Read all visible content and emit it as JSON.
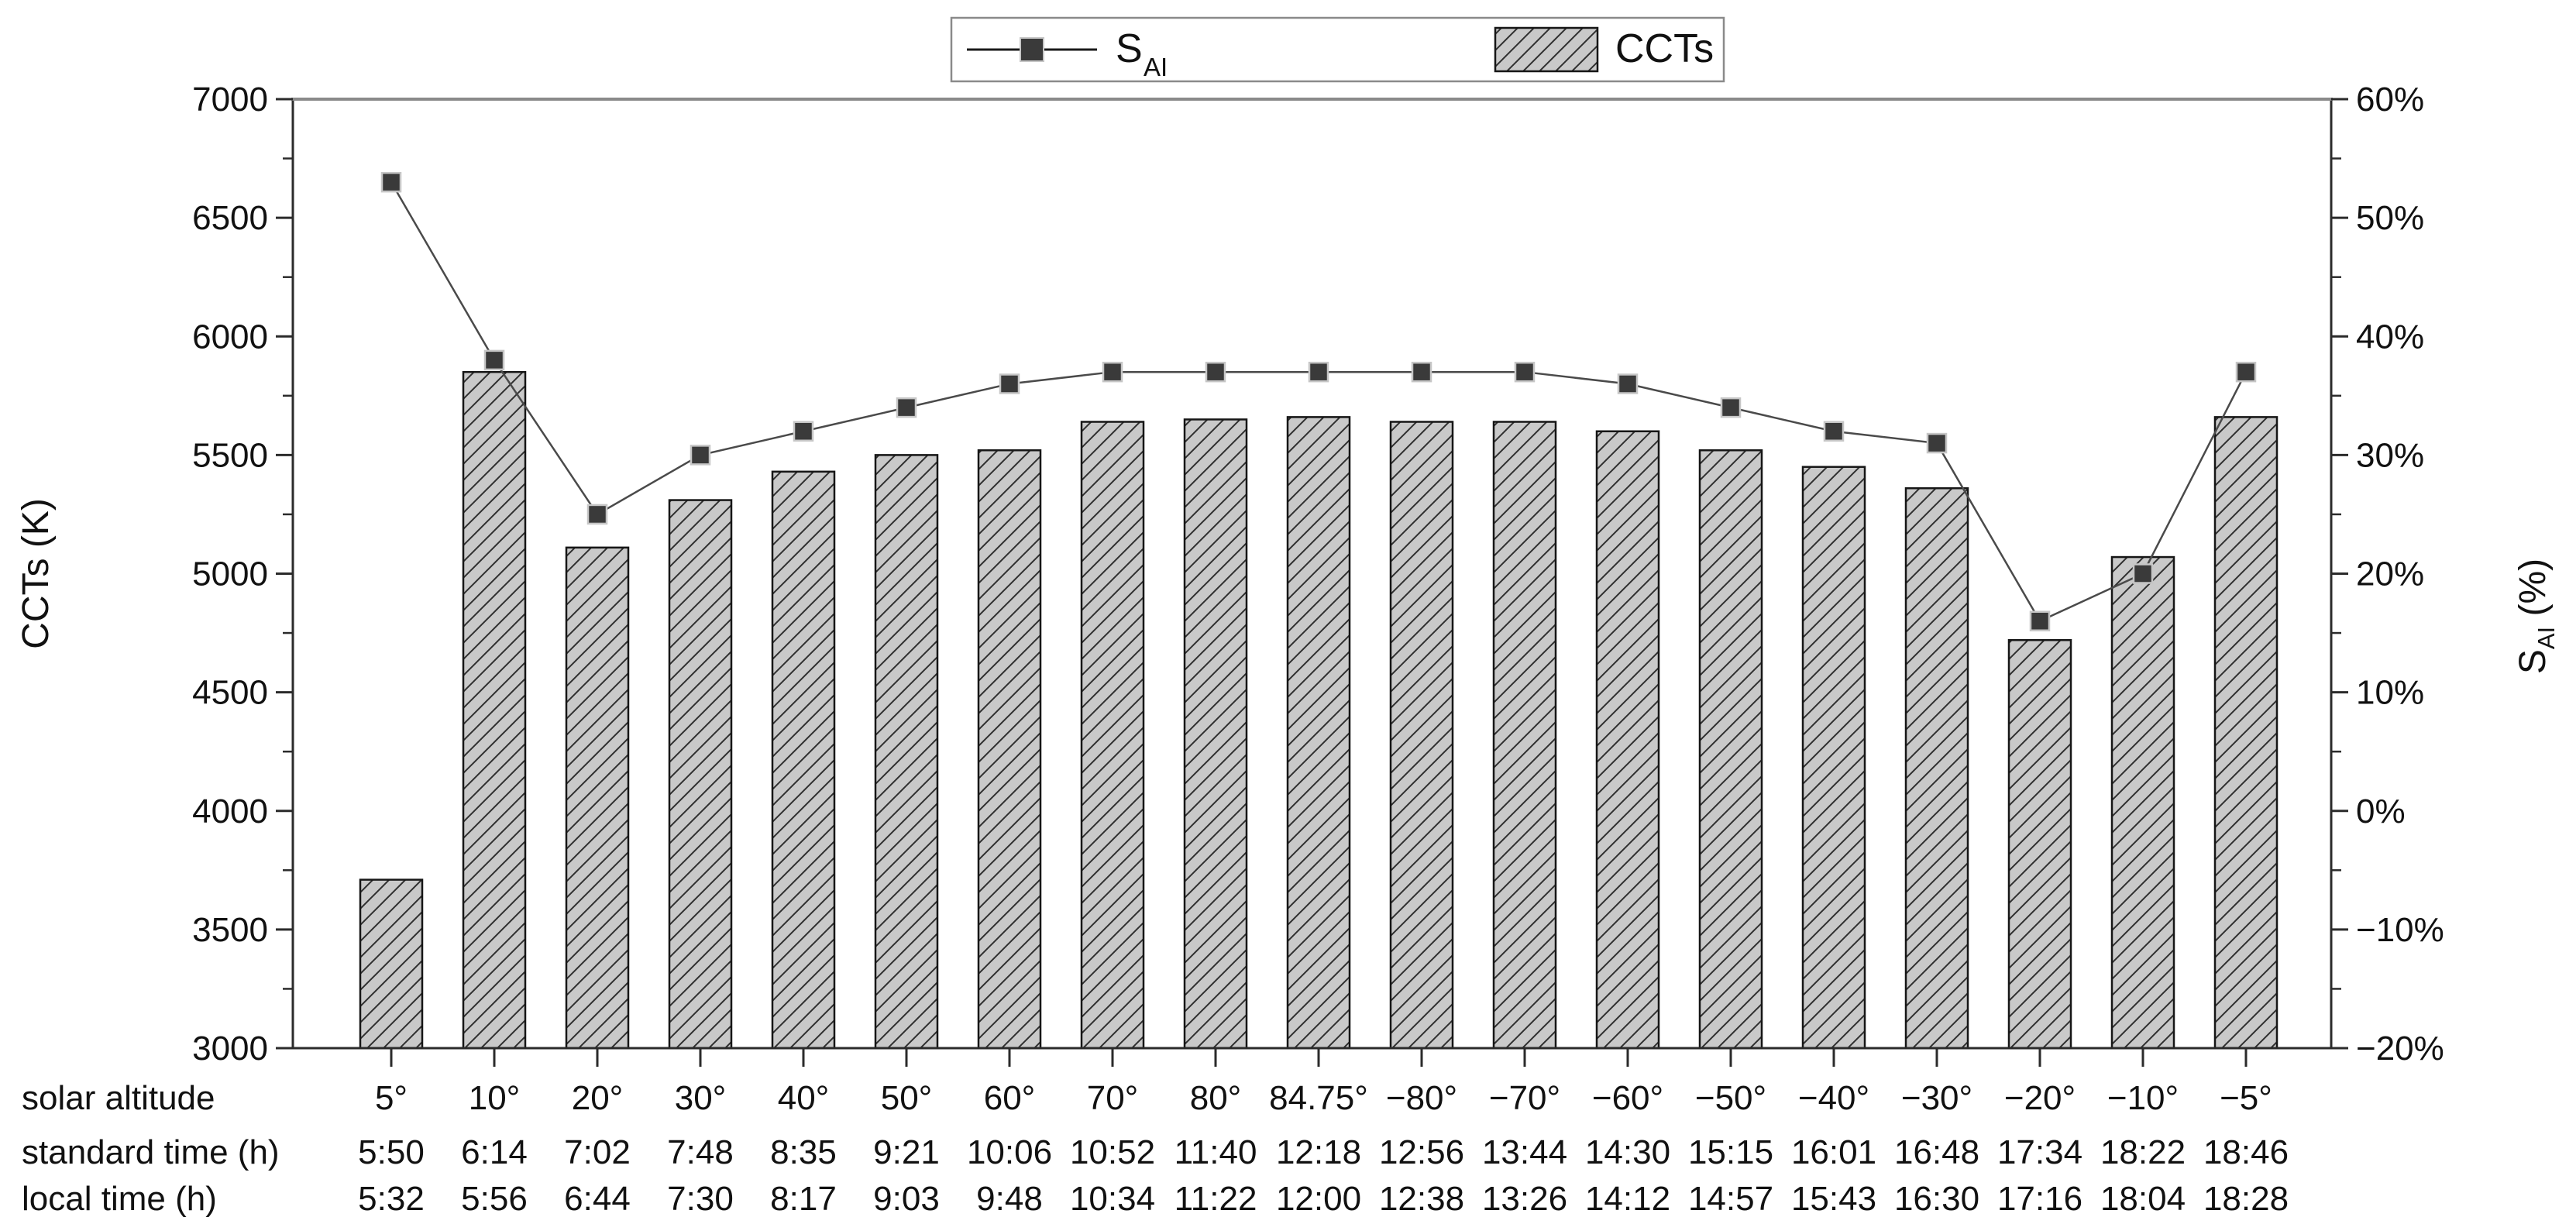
{
  "chart_data": {
    "type": "bar+line",
    "title": "",
    "categories": [
      "5°",
      "10°",
      "20°",
      "30°",
      "40°",
      "50°",
      "60°",
      "70°",
      "80°",
      "84.75°",
      "−80°",
      "−70°",
      "−60°",
      "−50°",
      "−40°",
      "−30°",
      "−20°",
      "−10°",
      "−5°"
    ],
    "series": [
      {
        "name": "CCTs",
        "type": "bar",
        "axis": "left",
        "unit": "K",
        "values": [
          3710,
          5850,
          5110,
          5310,
          5430,
          5500,
          5520,
          5640,
          5650,
          5660,
          5640,
          5640,
          5600,
          5520,
          5450,
          5360,
          4720,
          5070,
          5660
        ]
      },
      {
        "name": "SAI",
        "type": "line",
        "marker": "square",
        "axis": "right",
        "unit": "%",
        "values": [
          53,
          38,
          25,
          30,
          32,
          34,
          36,
          37,
          37,
          37,
          37,
          37,
          36,
          34,
          32,
          31,
          16,
          20,
          37
        ]
      }
    ],
    "x_rows": {
      "solar_altitude_label": "solar altitude",
      "standard_time_label": "standard time (h)",
      "standard_time": [
        "5:50",
        "6:14",
        "7:02",
        "7:48",
        "8:35",
        "9:21",
        "10:06",
        "10:52",
        "11:40",
        "12:18",
        "12:56",
        "13:44",
        "14:30",
        "15:15",
        "16:01",
        "16:48",
        "17:34",
        "18:22",
        "18:46"
      ],
      "local_time_label": "local time (h)",
      "local_time": [
        "5:32",
        "5:56",
        "6:44",
        "7:30",
        "8:17",
        "9:03",
        "9:48",
        "10:34",
        "11:22",
        "12:00",
        "12:38",
        "13:26",
        "14:12",
        "14:57",
        "15:43",
        "16:30",
        "17:16",
        "18:04",
        "18:28"
      ]
    },
    "left_axis": {
      "label": "CCTs (K)",
      "min": 3000,
      "max": 7000,
      "major": 500,
      "minor": 250,
      "tick_labels": [
        "7000",
        "6500",
        "6000",
        "5500",
        "5000",
        "4500",
        "4000",
        "3500",
        "3000"
      ]
    },
    "right_axis": {
      "label_main": "S",
      "label_sub": "AI",
      "label_tail": " (%)",
      "min": -20,
      "max": 60,
      "major": 10,
      "minor": 5,
      "tick_labels": [
        "60%",
        "50%",
        "40%",
        "30%",
        "20%",
        "10%",
        "0%",
        "−10%",
        "−20%"
      ]
    },
    "legend": {
      "position": "top-center",
      "entries": [
        {
          "label": "S",
          "sub": "AI",
          "swatch": "line-square-marker"
        },
        {
          "label": "CCTs",
          "swatch": "hatched-bar"
        }
      ]
    },
    "grid": false
  },
  "colors": {
    "background": "#ffffff",
    "bar_fill": "#c9c9c9",
    "bar_hatch": "#2f2f2f",
    "bar_edge": "#161616",
    "line": "#4a4a4a",
    "marker_fill": "#3a3a3a",
    "marker_edge": "#c6c6c6",
    "axis": "#2b2b2b",
    "frame_top": "#8a8a8a",
    "legend_border": "#8a8a8a",
    "text": "#111111"
  }
}
